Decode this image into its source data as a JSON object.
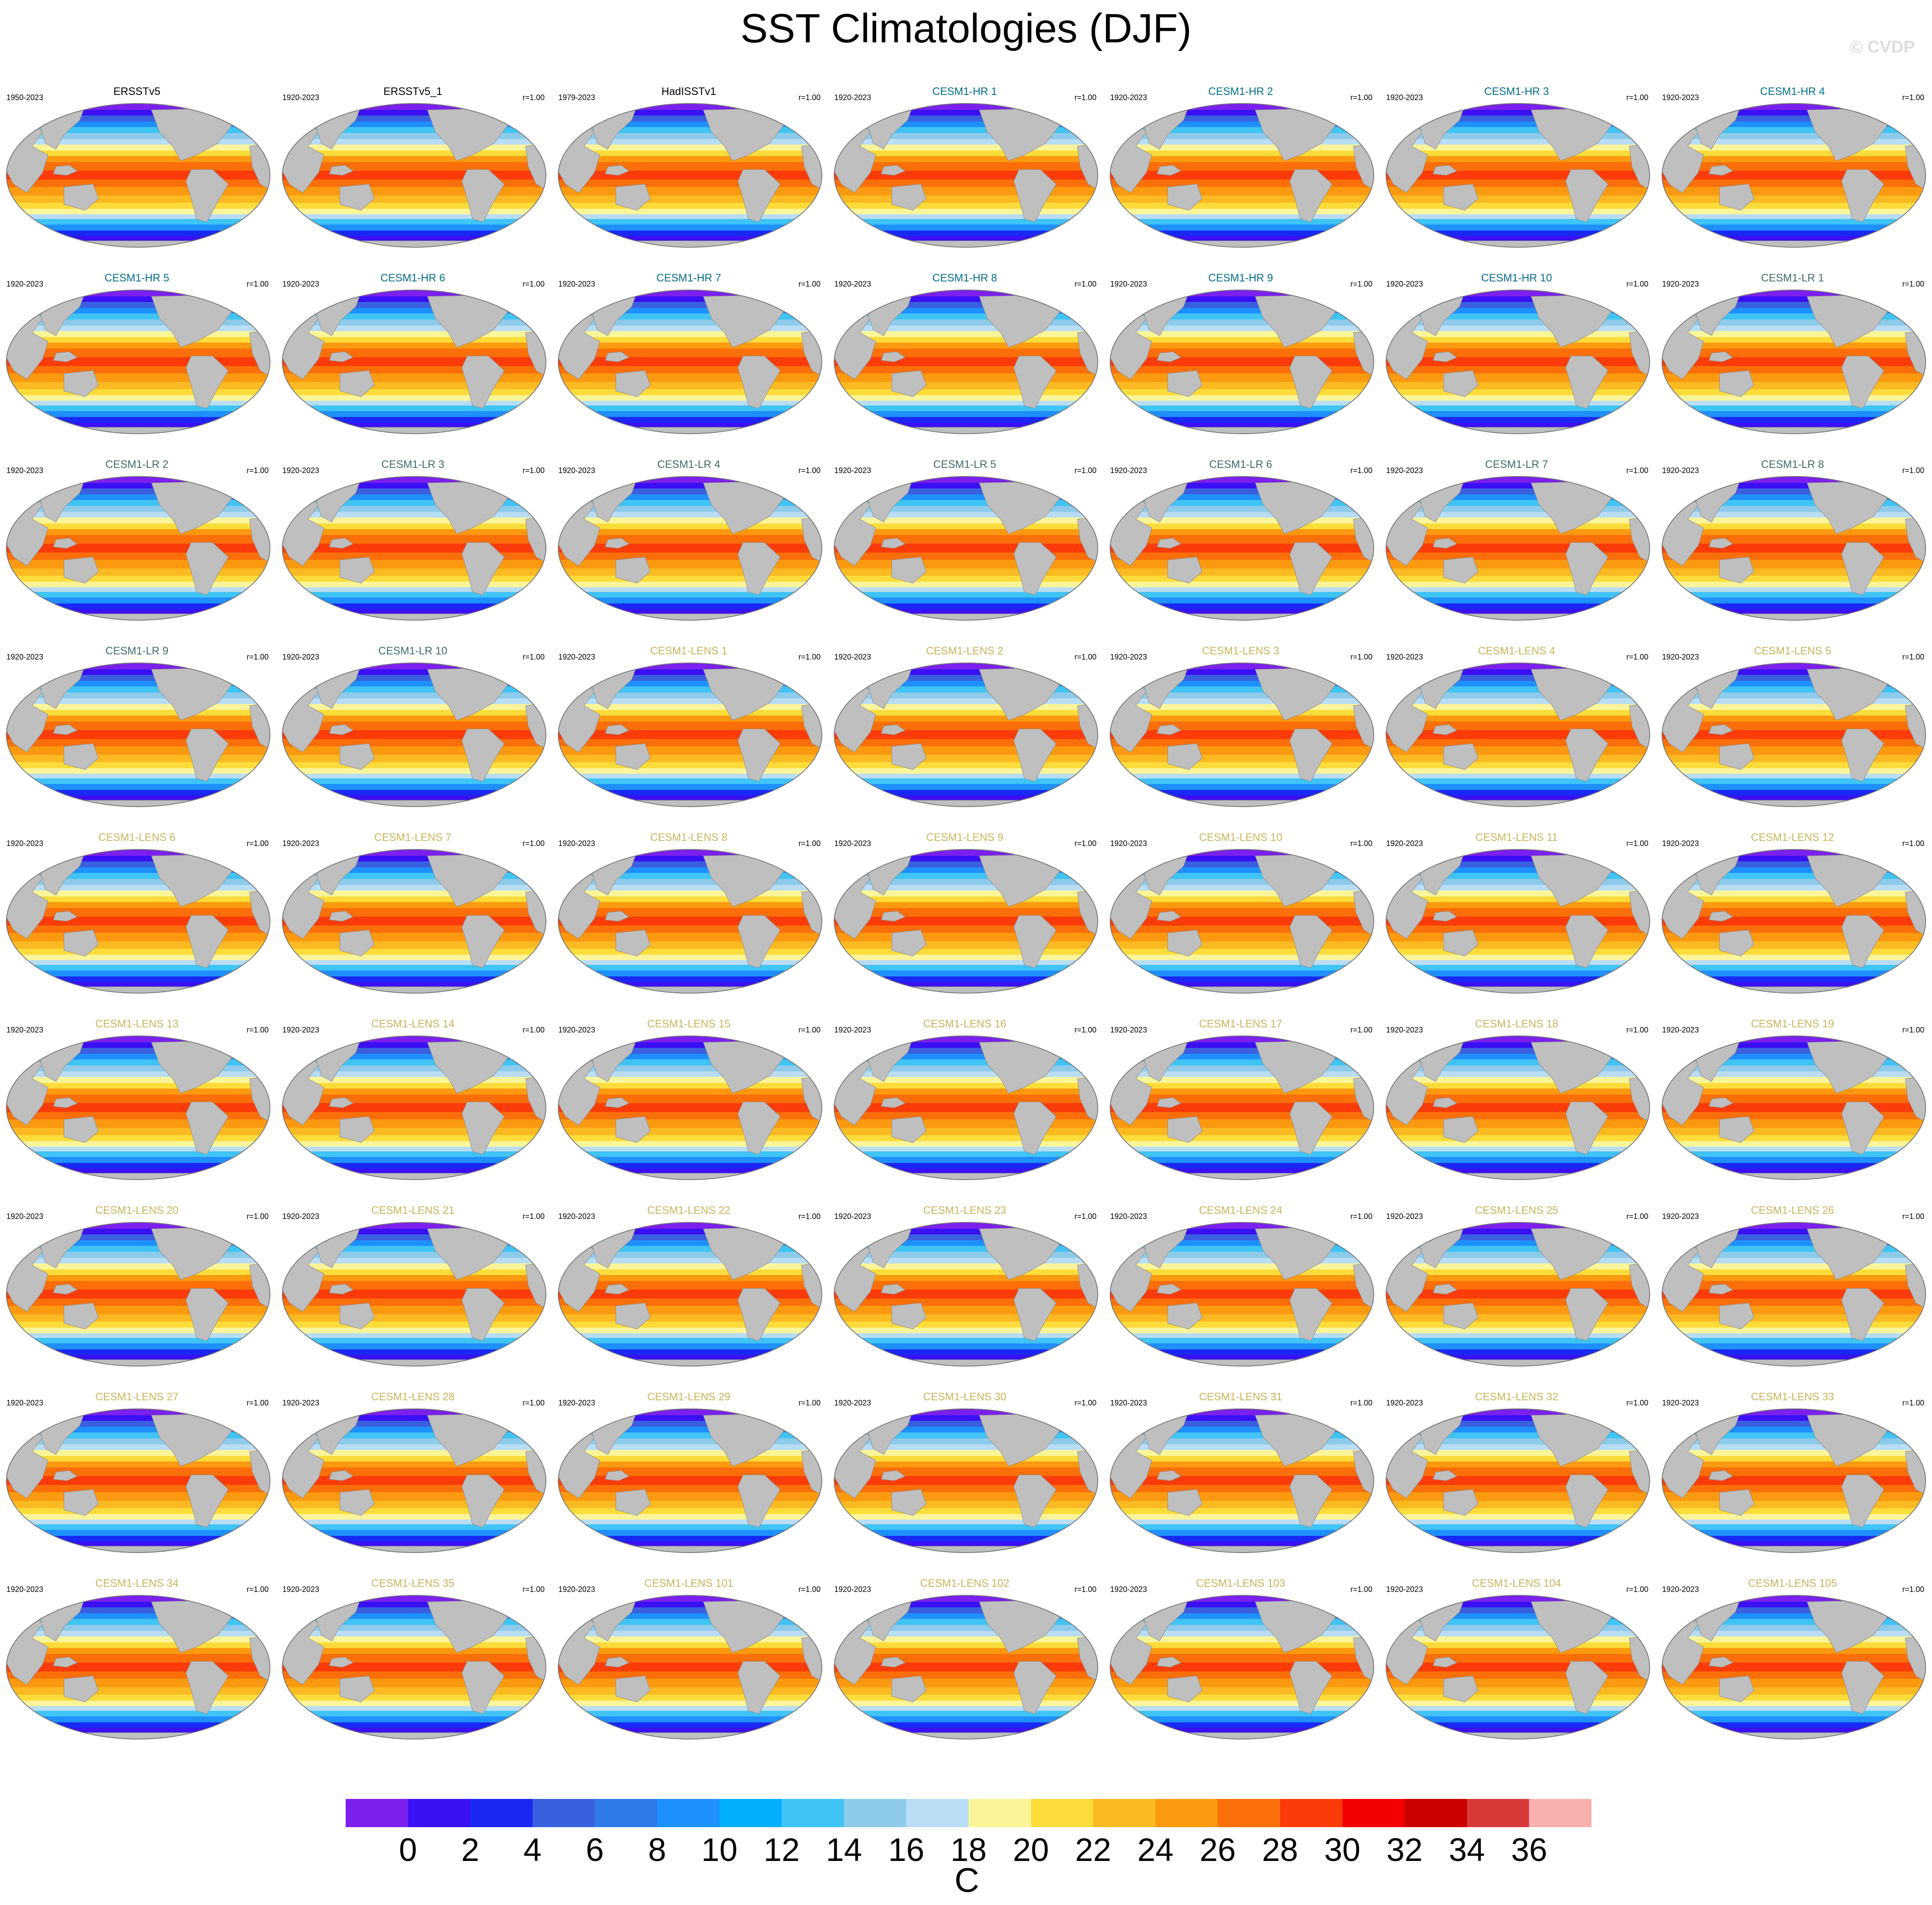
{
  "title": "SST Climatologies (DJF)",
  "credit": "© CVDP",
  "panels": [
    {
      "name": "ERSSTv5",
      "period": "1950-2023",
      "r": "",
      "group": "obs"
    },
    {
      "name": "ERSSTv5_1",
      "period": "1920-2023",
      "r": "r=1.00",
      "group": "obs"
    },
    {
      "name": "HadISSTv1",
      "period": "1979-2023",
      "r": "r=1.00",
      "group": "obs"
    },
    {
      "name": "CESM1-HR 1",
      "period": "1920-2023",
      "r": "r=1.00",
      "group": "hr"
    },
    {
      "name": "CESM1-HR 2",
      "period": "1920-2023",
      "r": "r=1.00",
      "group": "hr"
    },
    {
      "name": "CESM1-HR 3",
      "period": "1920-2023",
      "r": "r=1.00",
      "group": "hr"
    },
    {
      "name": "CESM1-HR 4",
      "period": "1920-2023",
      "r": "r=1.00",
      "group": "hr"
    },
    {
      "name": "CESM1-HR 5",
      "period": "1920-2023",
      "r": "r=1.00",
      "group": "hr"
    },
    {
      "name": "CESM1-HR 6",
      "period": "1920-2023",
      "r": "r=1.00",
      "group": "hr"
    },
    {
      "name": "CESM1-HR 7",
      "period": "1920-2023",
      "r": "r=1.00",
      "group": "hr"
    },
    {
      "name": "CESM1-HR 8",
      "period": "1920-2023",
      "r": "r=1.00",
      "group": "hr"
    },
    {
      "name": "CESM1-HR 9",
      "period": "1920-2023",
      "r": "r=1.00",
      "group": "hr"
    },
    {
      "name": "CESM1-HR 10",
      "period": "1920-2023",
      "r": "r=1.00",
      "group": "hr"
    },
    {
      "name": "CESM1-LR 1",
      "period": "1920-2023",
      "r": "r=1.00",
      "group": "lr"
    },
    {
      "name": "CESM1-LR 2",
      "period": "1920-2023",
      "r": "r=1.00",
      "group": "lr"
    },
    {
      "name": "CESM1-LR 3",
      "period": "1920-2023",
      "r": "r=1.00",
      "group": "lr"
    },
    {
      "name": "CESM1-LR 4",
      "period": "1920-2023",
      "r": "r=1.00",
      "group": "lr"
    },
    {
      "name": "CESM1-LR 5",
      "period": "1920-2023",
      "r": "r=1.00",
      "group": "lr"
    },
    {
      "name": "CESM1-LR 6",
      "period": "1920-2023",
      "r": "r=1.00",
      "group": "lr"
    },
    {
      "name": "CESM1-LR 7",
      "period": "1920-2023",
      "r": "r=1.00",
      "group": "lr"
    },
    {
      "name": "CESM1-LR 8",
      "period": "1920-2023",
      "r": "r=1.00",
      "group": "lr"
    },
    {
      "name": "CESM1-LR 9",
      "period": "1920-2023",
      "r": "r=1.00",
      "group": "lr"
    },
    {
      "name": "CESM1-LR 10",
      "period": "1920-2023",
      "r": "r=1.00",
      "group": "lr"
    },
    {
      "name": "CESM1-LENS 1",
      "period": "1920-2023",
      "r": "r=1.00",
      "group": "lens"
    },
    {
      "name": "CESM1-LENS 2",
      "period": "1920-2023",
      "r": "r=1.00",
      "group": "lens"
    },
    {
      "name": "CESM1-LENS 3",
      "period": "1920-2023",
      "r": "r=1.00",
      "group": "lens"
    },
    {
      "name": "CESM1-LENS 4",
      "period": "1920-2023",
      "r": "r=1.00",
      "group": "lens"
    },
    {
      "name": "CESM1-LENS 5",
      "period": "1920-2023",
      "r": "r=1.00",
      "group": "lens"
    },
    {
      "name": "CESM1-LENS 6",
      "period": "1920-2023",
      "r": "r=1.00",
      "group": "lens"
    },
    {
      "name": "CESM1-LENS 7",
      "period": "1920-2023",
      "r": "r=1.00",
      "group": "lens"
    },
    {
      "name": "CESM1-LENS 8",
      "period": "1920-2023",
      "r": "r=1.00",
      "group": "lens"
    },
    {
      "name": "CESM1-LENS 9",
      "period": "1920-2023",
      "r": "r=1.00",
      "group": "lens"
    },
    {
      "name": "CESM1-LENS 10",
      "period": "1920-2023",
      "r": "r=1.00",
      "group": "lens"
    },
    {
      "name": "CESM1-LENS 11",
      "period": "1920-2023",
      "r": "r=1.00",
      "group": "lens"
    },
    {
      "name": "CESM1-LENS 12",
      "period": "1920-2023",
      "r": "r=1.00",
      "group": "lens"
    },
    {
      "name": "CESM1-LENS 13",
      "period": "1920-2023",
      "r": "r=1.00",
      "group": "lens"
    },
    {
      "name": "CESM1-LENS 14",
      "period": "1920-2023",
      "r": "r=1.00",
      "group": "lens"
    },
    {
      "name": "CESM1-LENS 15",
      "period": "1920-2023",
      "r": "r=1.00",
      "group": "lens"
    },
    {
      "name": "CESM1-LENS 16",
      "period": "1920-2023",
      "r": "r=1.00",
      "group": "lens"
    },
    {
      "name": "CESM1-LENS 17",
      "period": "1920-2023",
      "r": "r=1.00",
      "group": "lens"
    },
    {
      "name": "CESM1-LENS 18",
      "period": "1920-2023",
      "r": "r=1.00",
      "group": "lens"
    },
    {
      "name": "CESM1-LENS 19",
      "period": "1920-2023",
      "r": "r=1.00",
      "group": "lens"
    },
    {
      "name": "CESM1-LENS 20",
      "period": "1920-2023",
      "r": "r=1.00",
      "group": "lens"
    },
    {
      "name": "CESM1-LENS 21",
      "period": "1920-2023",
      "r": "r=1.00",
      "group": "lens"
    },
    {
      "name": "CESM1-LENS 22",
      "period": "1920-2023",
      "r": "r=1.00",
      "group": "lens"
    },
    {
      "name": "CESM1-LENS 23",
      "period": "1920-2023",
      "r": "r=1.00",
      "group": "lens"
    },
    {
      "name": "CESM1-LENS 24",
      "period": "1920-2023",
      "r": "r=1.00",
      "group": "lens"
    },
    {
      "name": "CESM1-LENS 25",
      "period": "1920-2023",
      "r": "r=1.00",
      "group": "lens"
    },
    {
      "name": "CESM1-LENS 26",
      "period": "1920-2023",
      "r": "r=1.00",
      "group": "lens"
    },
    {
      "name": "CESM1-LENS 27",
      "period": "1920-2023",
      "r": "r=1.00",
      "group": "lens"
    },
    {
      "name": "CESM1-LENS 28",
      "period": "1920-2023",
      "r": "r=1.00",
      "group": "lens"
    },
    {
      "name": "CESM1-LENS 29",
      "period": "1920-2023",
      "r": "r=1.00",
      "group": "lens"
    },
    {
      "name": "CESM1-LENS 30",
      "period": "1920-2023",
      "r": "r=1.00",
      "group": "lens"
    },
    {
      "name": "CESM1-LENS 31",
      "period": "1920-2023",
      "r": "r=1.00",
      "group": "lens"
    },
    {
      "name": "CESM1-LENS 32",
      "period": "1920-2023",
      "r": "r=1.00",
      "group": "lens"
    },
    {
      "name": "CESM1-LENS 33",
      "period": "1920-2023",
      "r": "r=1.00",
      "group": "lens"
    },
    {
      "name": "CESM1-LENS 34",
      "period": "1920-2023",
      "r": "r=1.00",
      "group": "lens"
    },
    {
      "name": "CESM1-LENS 35",
      "period": "1920-2023",
      "r": "r=1.00",
      "group": "lens"
    },
    {
      "name": "CESM1-LENS 101",
      "period": "1920-2023",
      "r": "r=1.00",
      "group": "lens"
    },
    {
      "name": "CESM1-LENS 102",
      "period": "1920-2023",
      "r": "r=1.00",
      "group": "lens"
    },
    {
      "name": "CESM1-LENS 103",
      "period": "1920-2023",
      "r": "r=1.00",
      "group": "lens"
    },
    {
      "name": "CESM1-LENS 104",
      "period": "1920-2023",
      "r": "r=1.00",
      "group": "lens"
    },
    {
      "name": "CESM1-LENS 105",
      "period": "1920-2023",
      "r": "r=1.00",
      "group": "lens"
    }
  ],
  "group_colors": {
    "obs": "#000000",
    "hr": "#006e8c",
    "lr": "#3f6a6a",
    "lens": "#c9b45a"
  },
  "colors": {
    "land": "#bfbfbf",
    "map_outline": "#777777",
    "sea_ice": "#ffffff"
  },
  "colorbar": {
    "unit": "C",
    "labels": [
      "0",
      "2",
      "4",
      "6",
      "8",
      "10",
      "12",
      "14",
      "16",
      "18",
      "20",
      "22",
      "24",
      "26",
      "28",
      "30",
      "32",
      "34",
      "36"
    ],
    "colors": [
      "#7b20ee",
      "#3a10f5",
      "#1a28f5",
      "#3a60e0",
      "#2f7ae8",
      "#1e90ff",
      "#00b0ff",
      "#40c4f5",
      "#8ecbea",
      "#b8ddf4",
      "#fbf59a",
      "#fbdc3a",
      "#fbb922",
      "#fb9a10",
      "#fb6f0a",
      "#fb3c0a",
      "#f50000",
      "#cc0000",
      "#d83a3a",
      "#fbb0b0"
    ]
  }
}
